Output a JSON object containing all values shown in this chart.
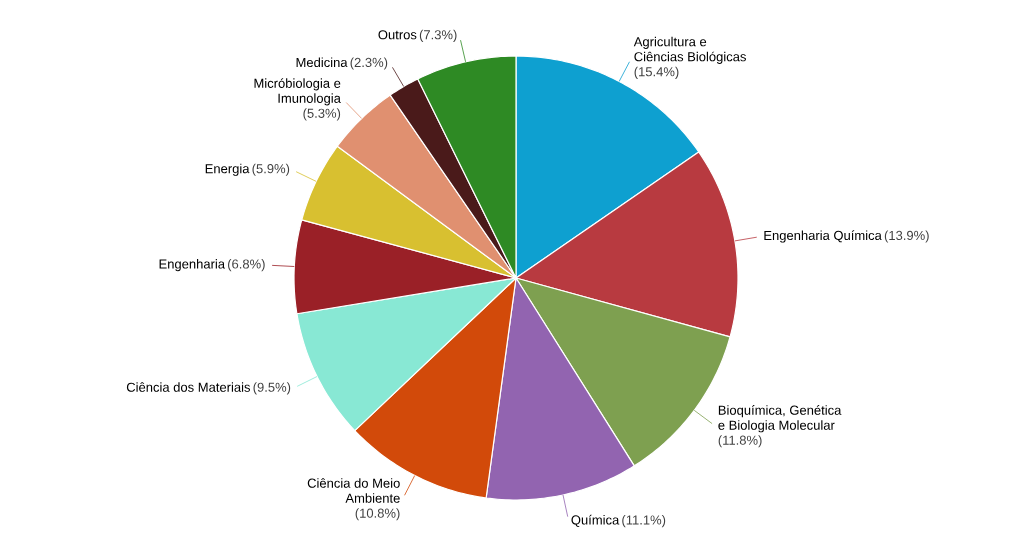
{
  "chart_data": {
    "type": "pie",
    "categories": [
      "Agricultura e Ciências Biológicas",
      "Engenharia Química",
      "Bioquímica, Genética e Biologia Molecular",
      "Química",
      "Ciência do Meio Ambiente",
      "Ciência dos Materiais",
      "Engenharia",
      "Energia",
      "Micróbiologia e Imunologia",
      "Medicina",
      "Outros"
    ],
    "values": [
      15.4,
      13.9,
      11.8,
      11.1,
      10.8,
      9.5,
      6.8,
      5.9,
      5.3,
      2.3,
      7.3
    ],
    "value_labels": [
      "(15.4%)",
      "(13.9%)",
      "(11.8%)",
      "(11.1%)",
      "(10.8%)",
      "(9.5%)",
      "(6.8%)",
      "(5.9%)",
      "(5.3%)",
      "(2.3%)",
      "(7.3%)"
    ],
    "colors": [
      "#0ea0d0",
      "#b83a40",
      "#7ea050",
      "#9264b0",
      "#d24a0a",
      "#88e8d4",
      "#9a2027",
      "#d8c030",
      "#e09070",
      "#4a1a1a",
      "#2e8a24"
    ]
  }
}
